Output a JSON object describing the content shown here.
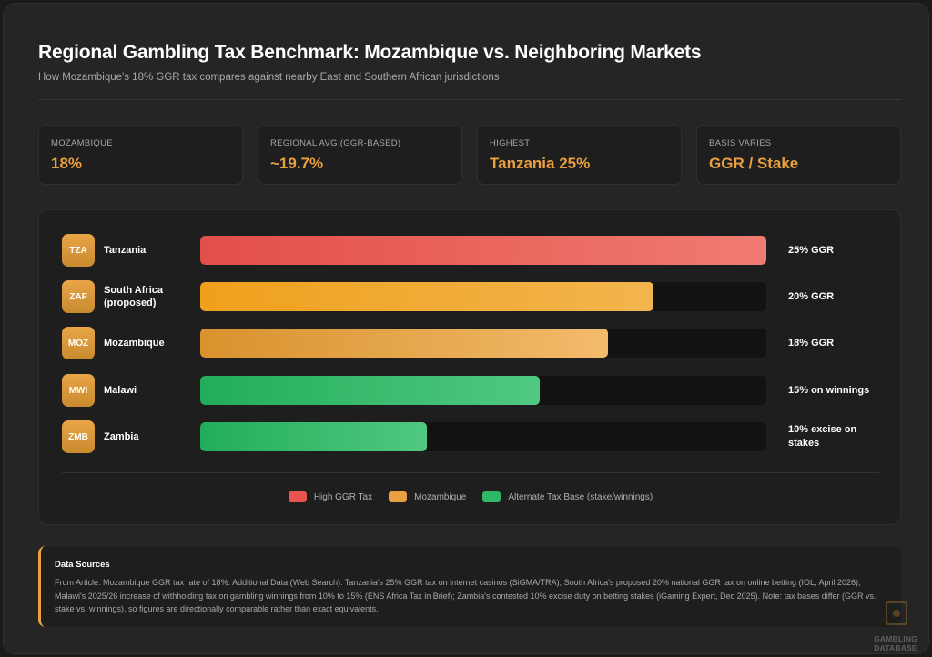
{
  "header": {
    "title": "Regional Gambling Tax Benchmark: Mozambique vs. Neighboring Markets",
    "subtitle": "How Mozambique's 18% GGR tax compares against nearby East and Southern African jurisdictions"
  },
  "stats": [
    {
      "label": "MOZAMBIQUE",
      "value": "18%"
    },
    {
      "label": "REGIONAL AVG (GGR-BASED)",
      "value": "~19.7%"
    },
    {
      "label": "HIGHEST",
      "value": "Tanzania 25%"
    },
    {
      "label": "BASIS VARIES",
      "value": "GGR / Stake"
    }
  ],
  "chart_data": {
    "type": "bar",
    "orientation": "horizontal",
    "categories": [
      "Tanzania",
      "South Africa (proposed)",
      "Mozambique",
      "Malawi",
      "Zambia"
    ],
    "codes": [
      "TZA",
      "ZAF",
      "MOZ",
      "MWI",
      "ZMB"
    ],
    "values": [
      25,
      20,
      18,
      15,
      10
    ],
    "value_labels": [
      "25% GGR",
      "20% GGR",
      "18% GGR",
      "15% on winnings",
      "10% excise on stakes"
    ],
    "bar_groups": [
      "high",
      "orange",
      "moz",
      "alt",
      "alt"
    ],
    "xlim": [
      0,
      25
    ],
    "title": "",
    "xlabel": "",
    "ylabel": "",
    "legend": [
      {
        "label": "High GGR Tax",
        "color": "#e9544c"
      },
      {
        "label": "Mozambique",
        "color": "#e8a040"
      },
      {
        "label": "Alternate Tax Base (stake/winnings)",
        "color": "#2fb866"
      }
    ],
    "legend_position": "bottom-center",
    "grid": false
  },
  "colors": {
    "accent": "#e8a040",
    "high": "#e24f48",
    "south_africa": "#f0a01c",
    "alternate": "#22ad5a",
    "background": "#252525"
  },
  "sources": {
    "title": "Data Sources",
    "text": "From Article: Mozambique GGR tax rate of 18%. Additional Data (Web Search): Tanzania's 25% GGR tax on internet casinos (SiGMA/TRA); South Africa's proposed 20% national GGR tax on online betting (IOL, April 2026); Malawi's 2025/26 increase of withholding tax on gambling winnings from 10% to 15% (ENS Africa Tax in Brief); Zambia's contested 10% excise duty on betting stakes (iGaming Expert, Dec 2025). Note: tax bases differ (GGR vs. stake vs. winnings), so figures are directionally comparable rather than exact equivalents."
  },
  "watermark": {
    "line1": "GAMBLING",
    "line2": "DATABASE",
    "icon": "logo-icon"
  }
}
